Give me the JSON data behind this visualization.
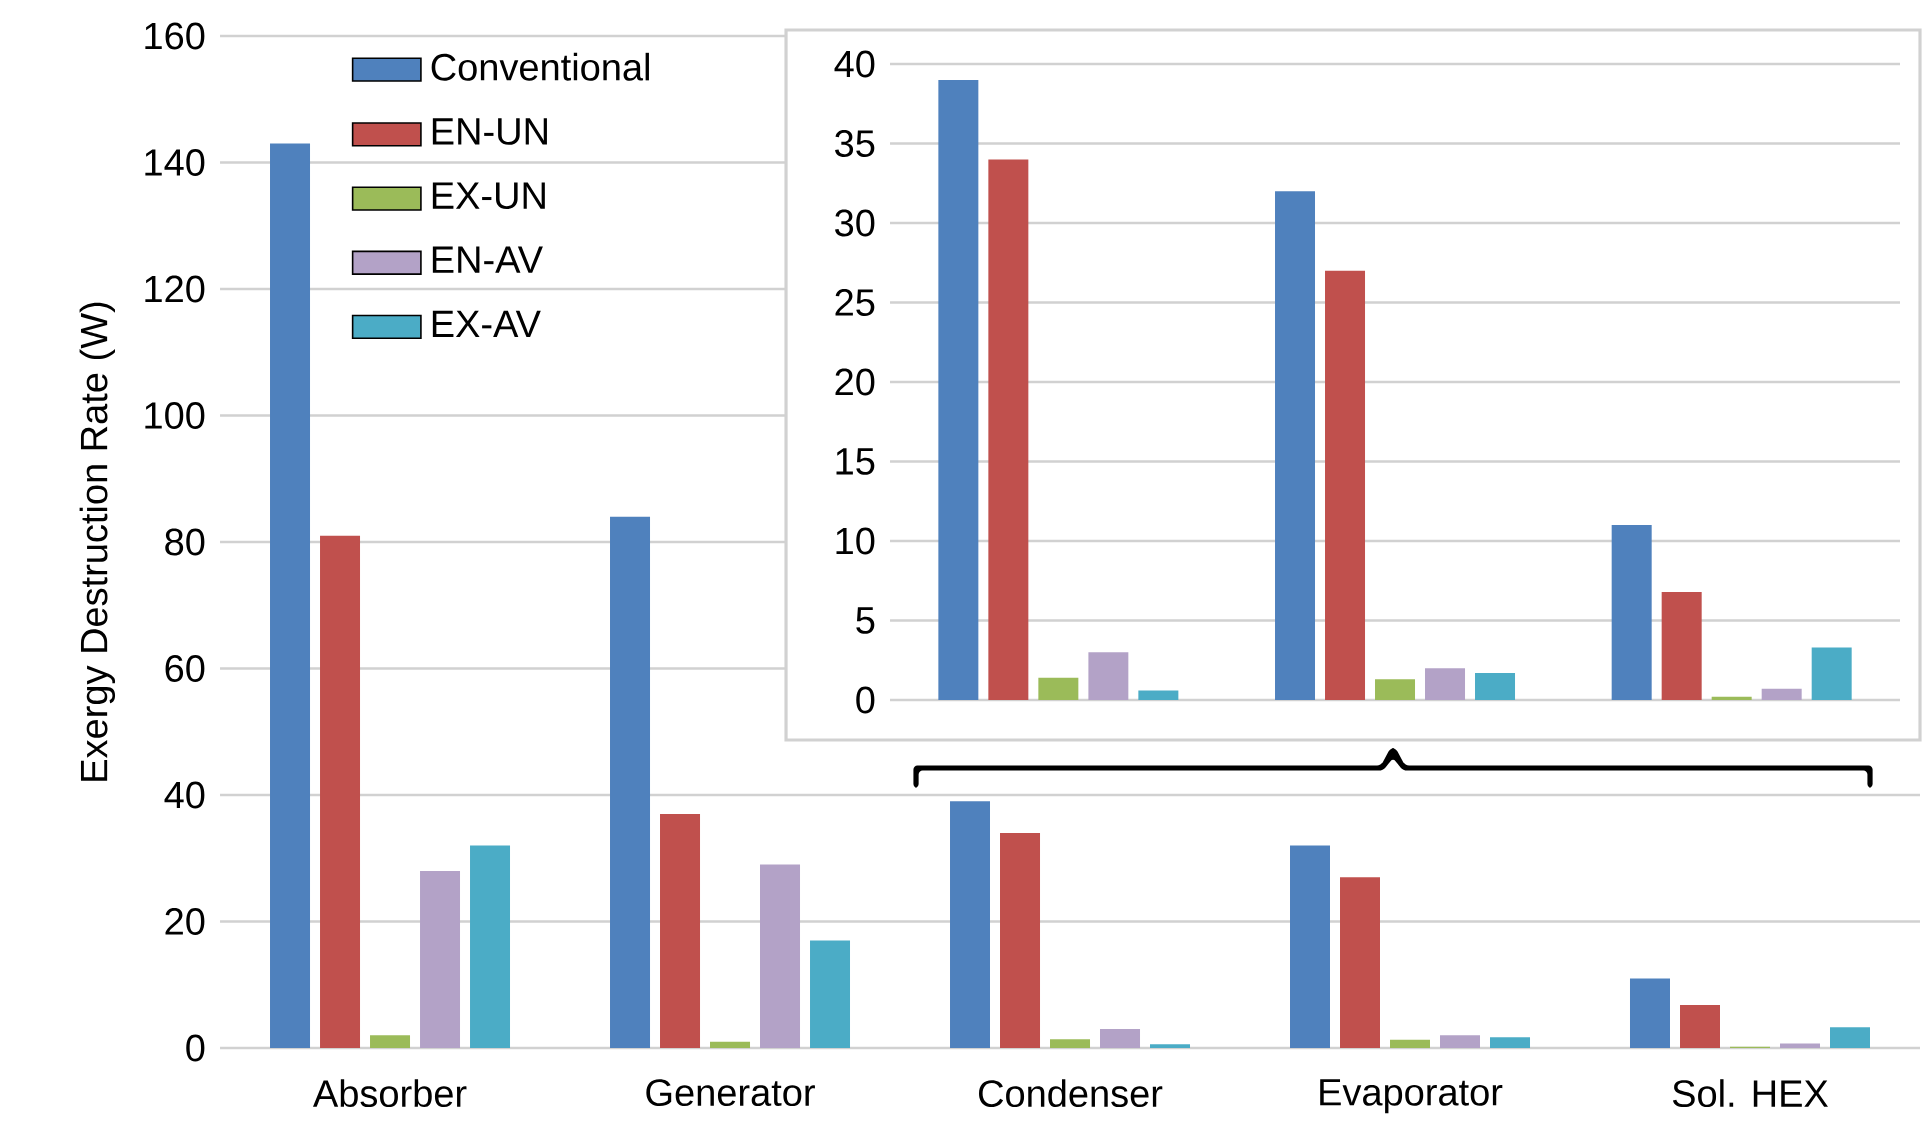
{
  "chart_data": [
    {
      "type": "bar",
      "ylabel": "Exergy Destruction Rate (W)",
      "categories": [
        "Absorber",
        "Generator",
        "Condenser",
        "Evaporator",
        "Sol. HEX"
      ],
      "ylim": [
        0,
        160
      ],
      "yticks": [
        0,
        20,
        40,
        60,
        80,
        100,
        120,
        140,
        160
      ],
      "grid": "y",
      "legend": "top left",
      "series": [
        {
          "name": "Conventional",
          "color": "#4f81bd",
          "values": [
            143,
            84,
            39,
            32,
            11
          ]
        },
        {
          "name": "EN-UN",
          "color": "#c0504d",
          "values": [
            81,
            37,
            34,
            27,
            6.8
          ]
        },
        {
          "name": "EX-UN",
          "color": "#9bbb59",
          "values": [
            2,
            1,
            1.4,
            1.3,
            0.2
          ]
        },
        {
          "name": "EN-AV",
          "color": "#b3a2c7",
          "values": [
            28,
            29,
            3,
            2,
            0.7
          ]
        },
        {
          "name": "EX-AV",
          "color": "#4bacc6",
          "values": [
            32,
            17,
            0.6,
            1.7,
            3.3
          ]
        }
      ]
    },
    {
      "type": "bar",
      "categories": [
        null,
        null,
        null
      ],
      "ylim": [
        0,
        40
      ],
      "yticks": [
        0,
        5,
        10,
        15,
        20,
        25,
        30,
        35,
        40
      ],
      "grid": "y",
      "tick_labels": "y",
      "series": [
        {
          "color": "#4f81bd",
          "values": [
            39,
            32,
            11
          ]
        },
        {
          "color": "#c0504d",
          "values": [
            34,
            27,
            6.8
          ]
        },
        {
          "color": "#9bbb59",
          "values": [
            1.4,
            1.3,
            0.2
          ]
        },
        {
          "color": "#b3a2c7",
          "values": [
            3,
            2,
            0.7
          ]
        },
        {
          "color": "#4bacc6",
          "values": [
            0.6,
            1.7,
            3.3
          ]
        }
      ]
    }
  ]
}
